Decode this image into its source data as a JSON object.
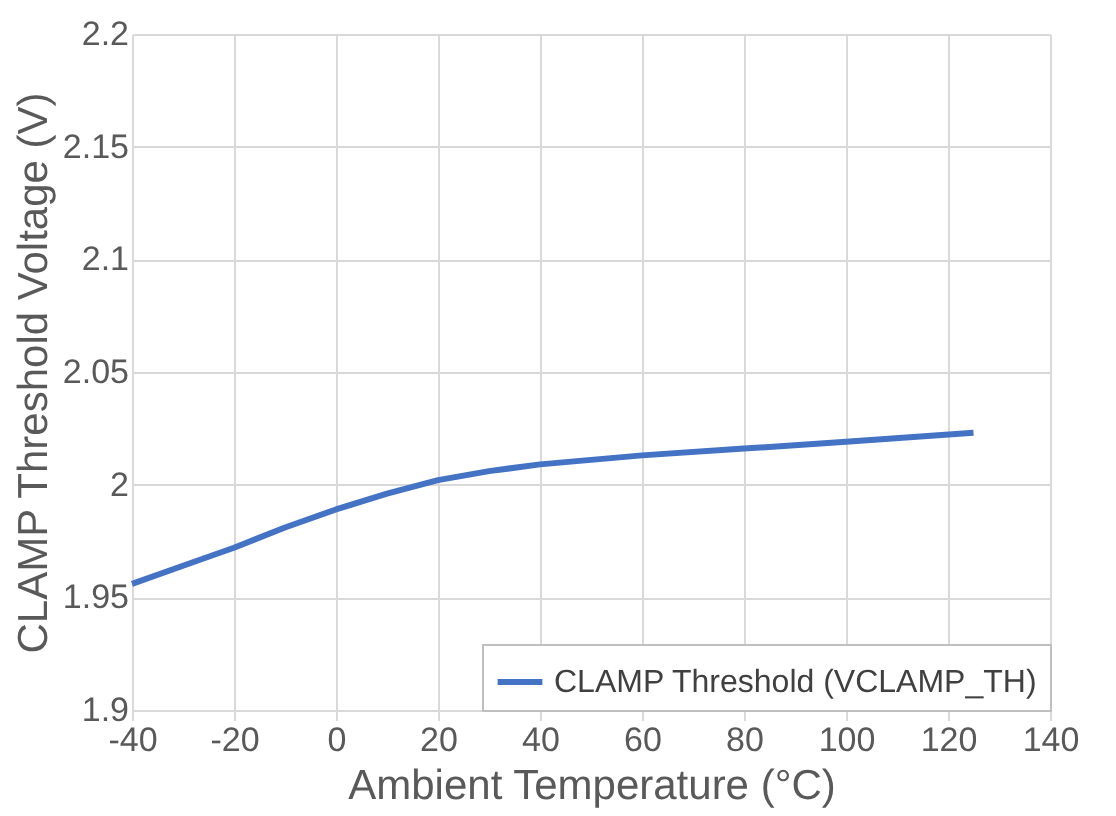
{
  "chart_data": {
    "type": "line",
    "xlabel": "Ambient Temperature (°C)",
    "ylabel": "CLAMP Threshold Voltage (V)",
    "x": [
      -40,
      -30,
      -20,
      -10,
      0,
      10,
      20,
      30,
      40,
      60,
      80,
      100,
      125
    ],
    "series": [
      {
        "name": "CLAMP Threshold (VCLAMP_TH)",
        "color": "#4472c4",
        "values": [
          1.956,
          1.964,
          1.972,
          1.981,
          1.989,
          1.996,
          2.002,
          2.006,
          2.009,
          2.013,
          2.016,
          2.019,
          2.023
        ]
      }
    ],
    "xlim": [
      -40,
      140
    ],
    "xticks": [
      -40,
      -20,
      0,
      20,
      40,
      60,
      80,
      100,
      120,
      140
    ],
    "ylim": [
      1.9,
      2.2
    ],
    "yticks": [
      1.9,
      1.95,
      2,
      2.05,
      2.1,
      2.15,
      2.2
    ],
    "grid": true,
    "legend": "bottom right",
    "marker": "none",
    "line_style": "solid"
  }
}
